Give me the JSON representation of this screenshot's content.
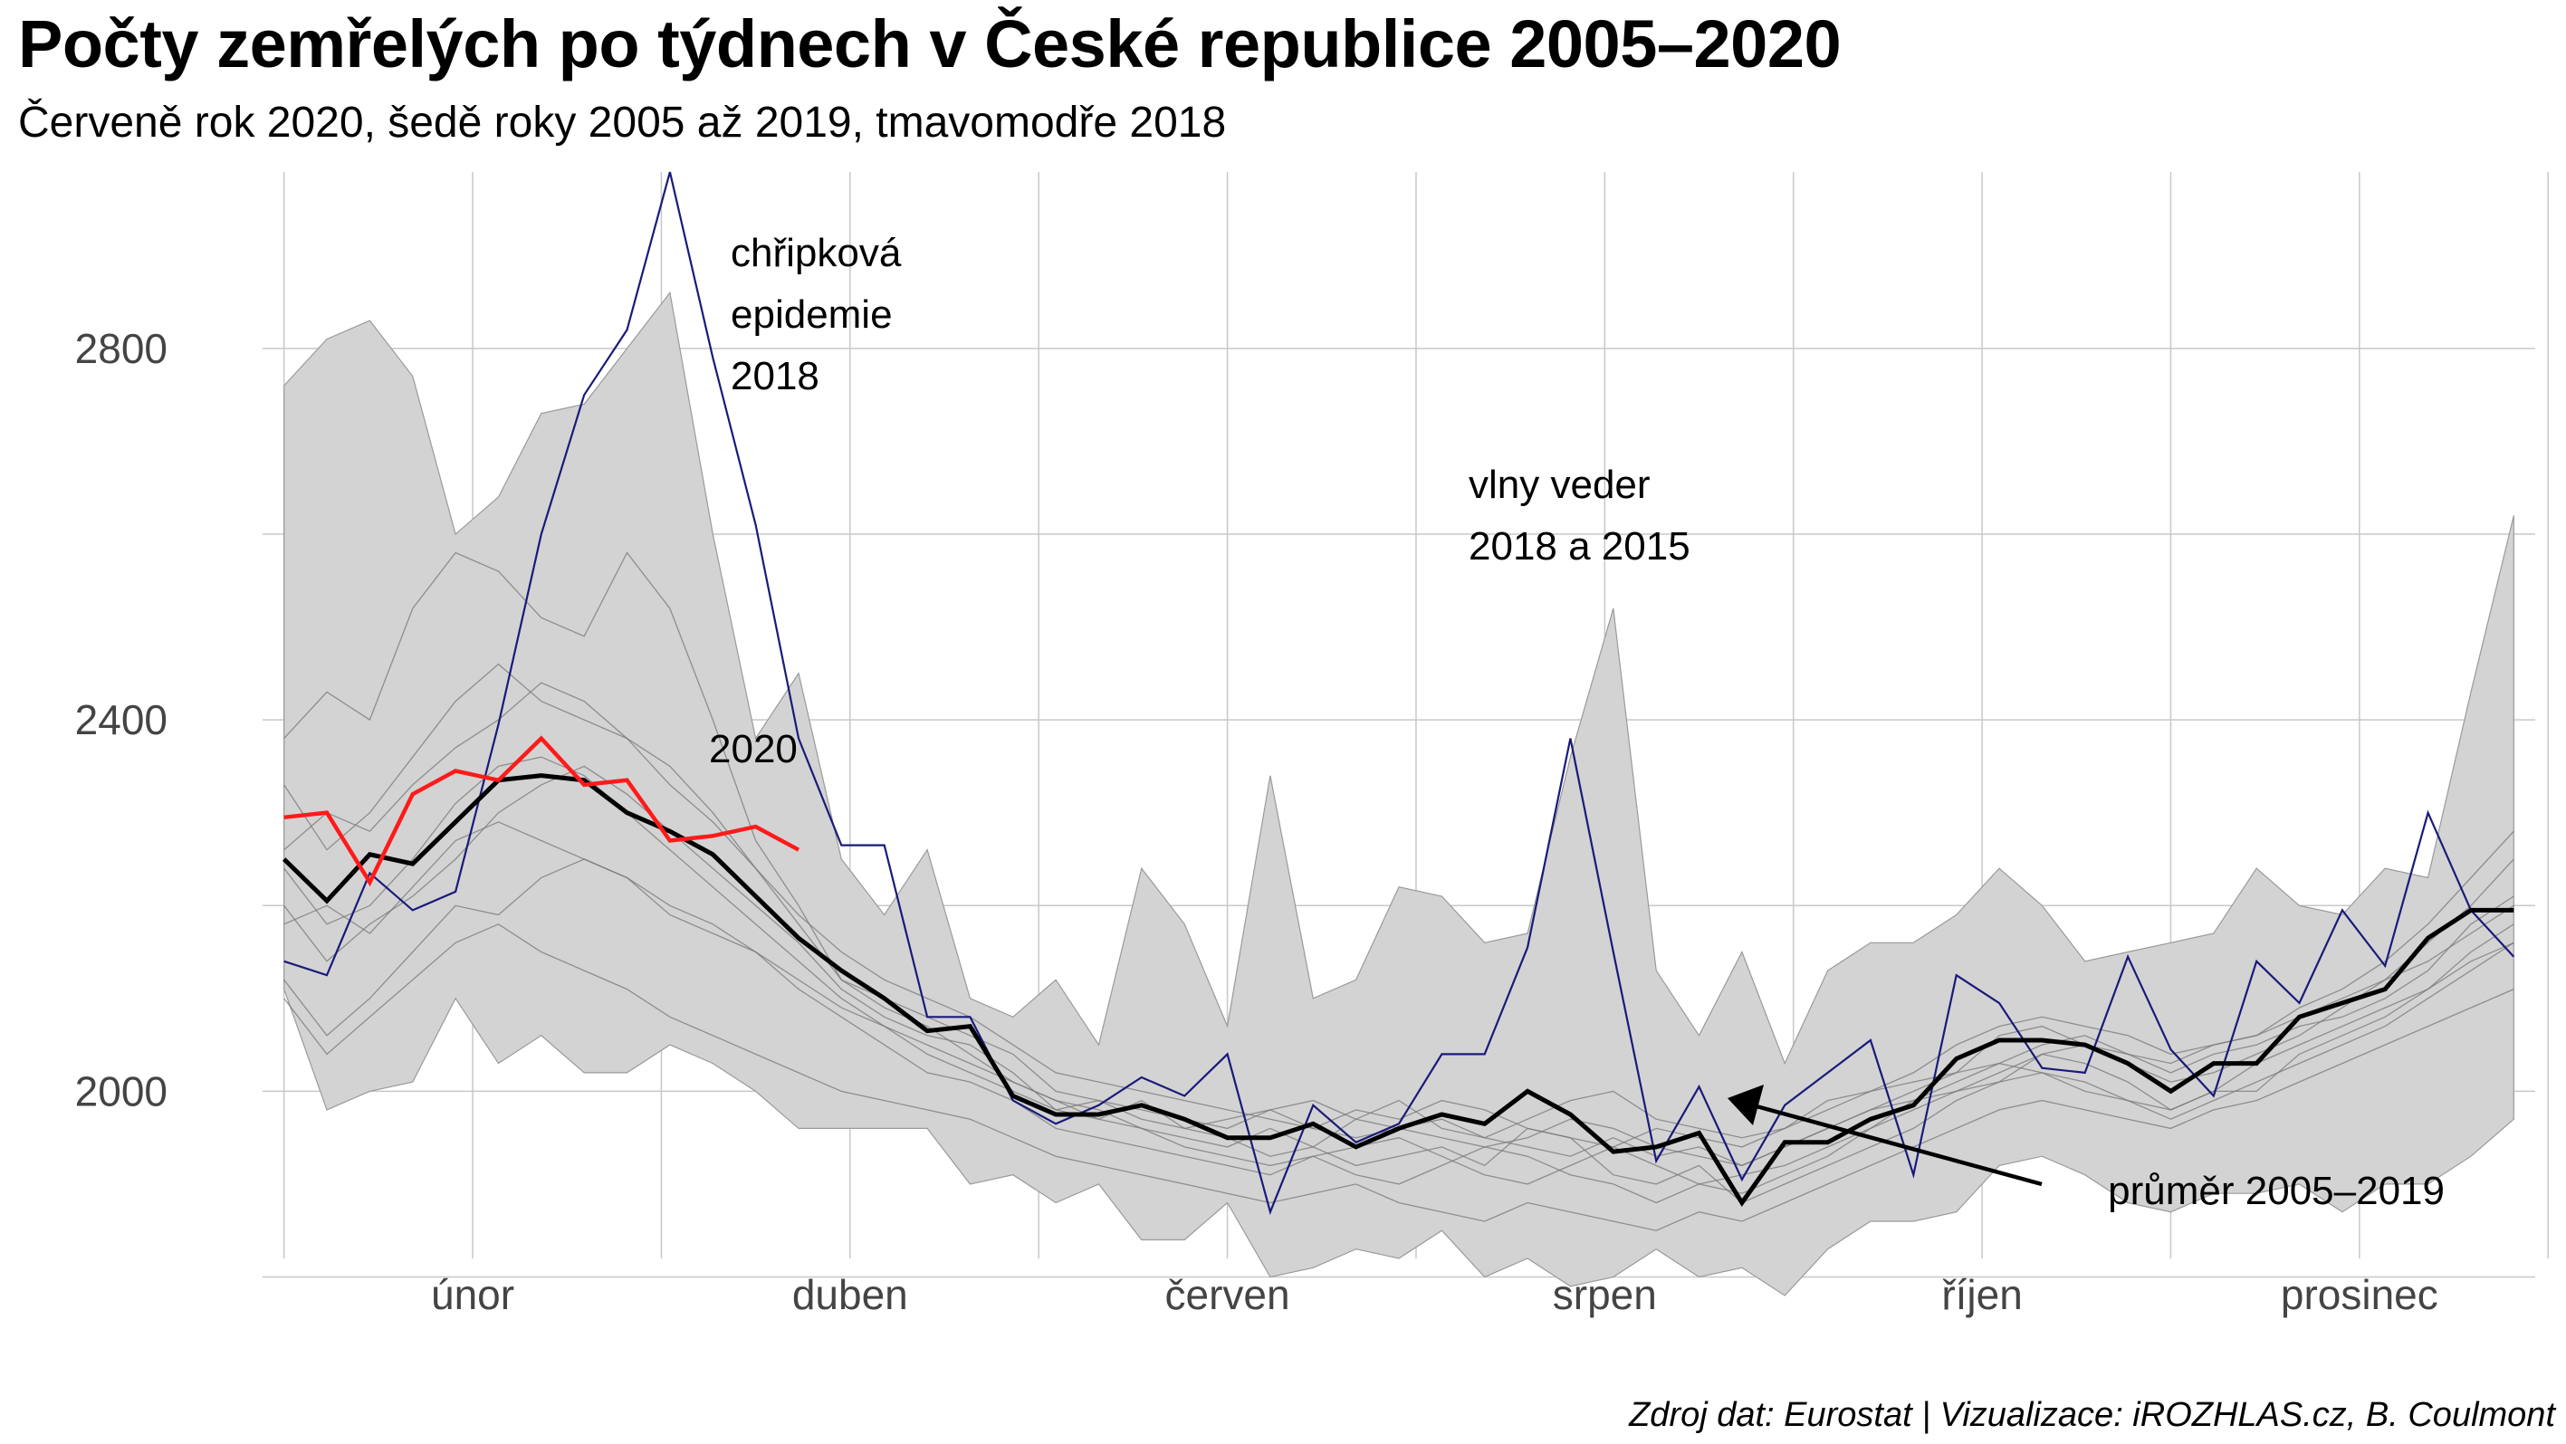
{
  "title": "Počty zemřelých po týdnech v České republice 2005–2020",
  "subtitle": "Červeně rok 2020, šedě roky 2005 až 2019, tmavomodře 2018",
  "caption": "Zdroj dat: Eurostat | Vizualizace: iROZHLAS.cz, B. Coulmont",
  "colors": {
    "band": "#d3d3d3",
    "past_years": "#777777",
    "year_2018": "#1a1a7a",
    "year_2020": "#ff1a1a",
    "mean": "#000000",
    "grid": "#c8c8c8"
  },
  "chart_data": {
    "type": "line",
    "title": "Počty zemřelých po týdnech v České republice 2005–2020",
    "xlabel": "",
    "ylabel": "",
    "xlim": [
      0.5,
      53.5
    ],
    "ylim": [
      1820,
      2990
    ],
    "y_ticks": [
      2000,
      2400,
      2800
    ],
    "x_tick_labels": [
      {
        "label": "únor",
        "week": 5.4
      },
      {
        "label": "duben",
        "week": 14.2
      },
      {
        "label": "červen",
        "week": 23.0
      },
      {
        "label": "srpen",
        "week": 31.8
      },
      {
        "label": "říjen",
        "week": 40.6
      },
      {
        "label": "prosinec",
        "week": 49.4
      }
    ],
    "grid": true,
    "weeks": [
      1,
      2,
      3,
      4,
      5,
      6,
      7,
      8,
      9,
      10,
      11,
      12,
      13,
      14,
      15,
      16,
      17,
      18,
      19,
      20,
      21,
      22,
      23,
      24,
      25,
      26,
      27,
      28,
      29,
      30,
      31,
      32,
      33,
      34,
      35,
      36,
      37,
      38,
      39,
      40,
      41,
      42,
      43,
      44,
      45,
      46,
      47,
      48,
      49,
      50,
      51,
      52,
      53
    ],
    "range_2005_2019": {
      "max": [
        2760,
        2810,
        2830,
        2770,
        2600,
        2640,
        2730,
        2740,
        2800,
        2860,
        2600,
        2380,
        2450,
        2250,
        2190,
        2260,
        2100,
        2080,
        2120,
        2050,
        2240,
        2180,
        2070,
        2340,
        2100,
        2120,
        2220,
        2210,
        2160,
        2170,
        2360,
        2520,
        2130,
        2060,
        2150,
        2030,
        2130,
        2160,
        2160,
        2190,
        2240,
        2200,
        2140,
        2150,
        2160,
        2170,
        2240,
        2200,
        2190,
        2240,
        2230,
        2430,
        2620
      ],
      "min": [
        2110,
        1980,
        2000,
        2010,
        2100,
        2030,
        2060,
        2020,
        2020,
        2050,
        2030,
        2000,
        1960,
        1960,
        1960,
        1960,
        1900,
        1910,
        1880,
        1900,
        1840,
        1840,
        1880,
        1800,
        1810,
        1830,
        1820,
        1850,
        1800,
        1820,
        1790,
        1800,
        1830,
        1800,
        1810,
        1780,
        1830,
        1860,
        1860,
        1870,
        1920,
        1930,
        1910,
        1880,
        1870,
        1890,
        1890,
        1900,
        1870,
        1900,
        1900,
        1930,
        1970
      ]
    },
    "series": [
      {
        "name": "2020",
        "values": [
          2295,
          2300,
          2225,
          2320,
          2345,
          2335,
          2380,
          2330,
          2335,
          2270,
          2275,
          2285,
          2260
        ]
      },
      {
        "values": [
          2140,
          2125,
          2235,
          2195,
          2215,
          2395,
          2600,
          2750,
          2820,
          2990,
          2790,
          2610,
          2380,
          2265,
          2265,
          2080,
          2080,
          1990,
          1965,
          1985,
          2015,
          1995,
          2040,
          1870,
          1985,
          1945,
          1965,
          2040,
          2040,
          2155,
          2380,
          2150,
          1925,
          2005,
          1905,
          1985,
          2020,
          2055,
          1910,
          2125,
          2095,
          2025,
          2020,
          2145,
          2045,
          1995,
          2140,
          2095,
          2195,
          2135,
          2300,
          2195,
          2145
        ]
      },
      {
        "name": "průměr 2005–2019",
        "values": [
          2250,
          2205,
          2255,
          2245,
          2290,
          2335,
          2340,
          2335,
          2300,
          2280,
          2255,
          2210,
          2165,
          2130,
          2100,
          2065,
          2070,
          1995,
          1975,
          1975,
          1985,
          1970,
          1950,
          1950,
          1965,
          1940,
          1960,
          1975,
          1965,
          2000,
          1975,
          1935,
          1940,
          1955,
          1880,
          1945,
          1945,
          1970,
          1985,
          2035,
          2055,
          2055,
          2050,
          2030,
          2000,
          2030,
          2030,
          2080,
          2095,
          2110,
          2165,
          2195,
          2195
        ]
      }
    ],
    "background_years": [
      [
        2380,
        2430,
        2400,
        2520,
        2580,
        2560,
        2510,
        2490,
        2580,
        2520,
        2400,
        2270,
        2200,
        2120,
        2090,
        2070,
        2040,
        2010,
        1990,
        1980,
        1960,
        1950,
        1940,
        1960,
        1940,
        1920,
        1930,
        1940,
        1920,
        1960,
        1950,
        1910,
        1900,
        1920,
        1880,
        1900,
        1920,
        1940,
        1960,
        1990,
        2010,
        2040,
        2030,
        2010,
        1980,
        2000,
        2000,
        2040,
        2060,
        2080,
        2110,
        2140,
        2160
      ],
      [
        2330,
        2260,
        2300,
        2360,
        2420,
        2460,
        2420,
        2400,
        2380,
        2350,
        2300,
        2240,
        2180,
        2120,
        2100,
        2080,
        2060,
        2040,
        2000,
        1990,
        1970,
        1960,
        1970,
        1980,
        1960,
        1950,
        1960,
        1970,
        1950,
        1940,
        1930,
        1950,
        1930,
        1940,
        1920,
        1940,
        1960,
        1980,
        2000,
        2020,
        2030,
        2050,
        2060,
        2040,
        2020,
        2040,
        2050,
        2070,
        2080,
        2100,
        2130,
        2180,
        2210
      ],
      [
        2200,
        2140,
        2180,
        2210,
        2250,
        2300,
        2330,
        2350,
        2320,
        2280,
        2240,
        2200,
        2160,
        2110,
        2080,
        2060,
        2050,
        2020,
        1980,
        1970,
        1990,
        1960,
        1950,
        1930,
        1940,
        1970,
        1990,
        1960,
        1950,
        1970,
        1990,
        2000,
        1970,
        1960,
        1950,
        1960,
        1990,
        2000,
        2010,
        2020,
        2060,
        2070,
        2050,
        2030,
        2010,
        2020,
        2040,
        2060,
        2090,
        2120,
        2160,
        2200,
        2250
      ],
      [
        2120,
        2060,
        2100,
        2150,
        2200,
        2190,
        2230,
        2250,
        2230,
        2200,
        2180,
        2150,
        2110,
        2080,
        2050,
        2020,
        2010,
        1990,
        1960,
        1950,
        1940,
        1930,
        1920,
        1910,
        1930,
        1940,
        1950,
        1930,
        1910,
        1900,
        1920,
        1940,
        1920,
        1900,
        1890,
        1910,
        1930,
        1960,
        1980,
        2000,
        2010,
        2020,
        2010,
        1990,
        1970,
        1990,
        2010,
        2030,
        2050,
        2070,
        2100,
        2130,
        2160
      ],
      [
        2260,
        2300,
        2280,
        2330,
        2370,
        2400,
        2440,
        2420,
        2380,
        2330,
        2290,
        2240,
        2190,
        2150,
        2120,
        2100,
        2080,
        2050,
        2020,
        2010,
        2000,
        1990,
        1980,
        1970,
        1960,
        1980,
        1970,
        1990,
        1980,
        1960,
        1950,
        1940,
        1960,
        1950,
        1940,
        1960,
        1980,
        2000,
        2020,
        2050,
        2070,
        2080,
        2070,
        2060,
        2040,
        2050,
        2060,
        2090,
        2110,
        2140,
        2180,
        2230,
        2280
      ],
      [
        2180,
        2200,
        2170,
        2220,
        2270,
        2290,
        2270,
        2250,
        2230,
        2190,
        2170,
        2150,
        2120,
        2090,
        2070,
        2050,
        2030,
        2010,
        1990,
        1970,
        1960,
        1940,
        1930,
        1920,
        1930,
        1910,
        1900,
        1920,
        1940,
        1930,
        1910,
        1900,
        1880,
        1900,
        1910,
        1920,
        1940,
        1960,
        1990,
        2010,
        2030,
        2020,
        2000,
        1990,
        1980,
        2000,
        2030,
        2050,
        2070,
        2090,
        2110,
        2150,
        2180
      ],
      [
        2240,
        2180,
        2200,
        2250,
        2310,
        2350,
        2360,
        2340,
        2300,
        2260,
        2220,
        2180,
        2140,
        2100,
        2070,
        2040,
        2020,
        2000,
        1980,
        1990,
        1980,
        1970,
        1960,
        1980,
        1990,
        1970,
        1960,
        1950,
        1940,
        1950,
        1970,
        1960,
        1940,
        1930,
        1920,
        1940,
        1960,
        1980,
        1990,
        2000,
        2020,
        2040,
        2050,
        2040,
        2030,
        2050,
        2060,
        2080,
        2100,
        2120,
        2140,
        2170,
        2200
      ],
      [
        2100,
        2040,
        2080,
        2120,
        2160,
        2180,
        2150,
        2130,
        2110,
        2080,
        2060,
        2040,
        2020,
        2000,
        1990,
        1980,
        1970,
        1950,
        1930,
        1920,
        1910,
        1900,
        1890,
        1880,
        1890,
        1900,
        1880,
        1870,
        1860,
        1880,
        1870,
        1860,
        1850,
        1870,
        1860,
        1880,
        1900,
        1920,
        1940,
        1960,
        1980,
        1990,
        1980,
        1970,
        1960,
        1980,
        1990,
        2010,
        2030,
        2050,
        2070,
        2090,
        2110
      ]
    ],
    "annotations": [
      {
        "text_lines": [
          "chřipková",
          "epidemie",
          "2018"
        ]
      },
      {
        "text_lines": [
          "vlny veder",
          "2018 a 2015"
        ]
      },
      {
        "text": "2020"
      },
      {
        "text": "průměr 2005–2019"
      }
    ]
  }
}
